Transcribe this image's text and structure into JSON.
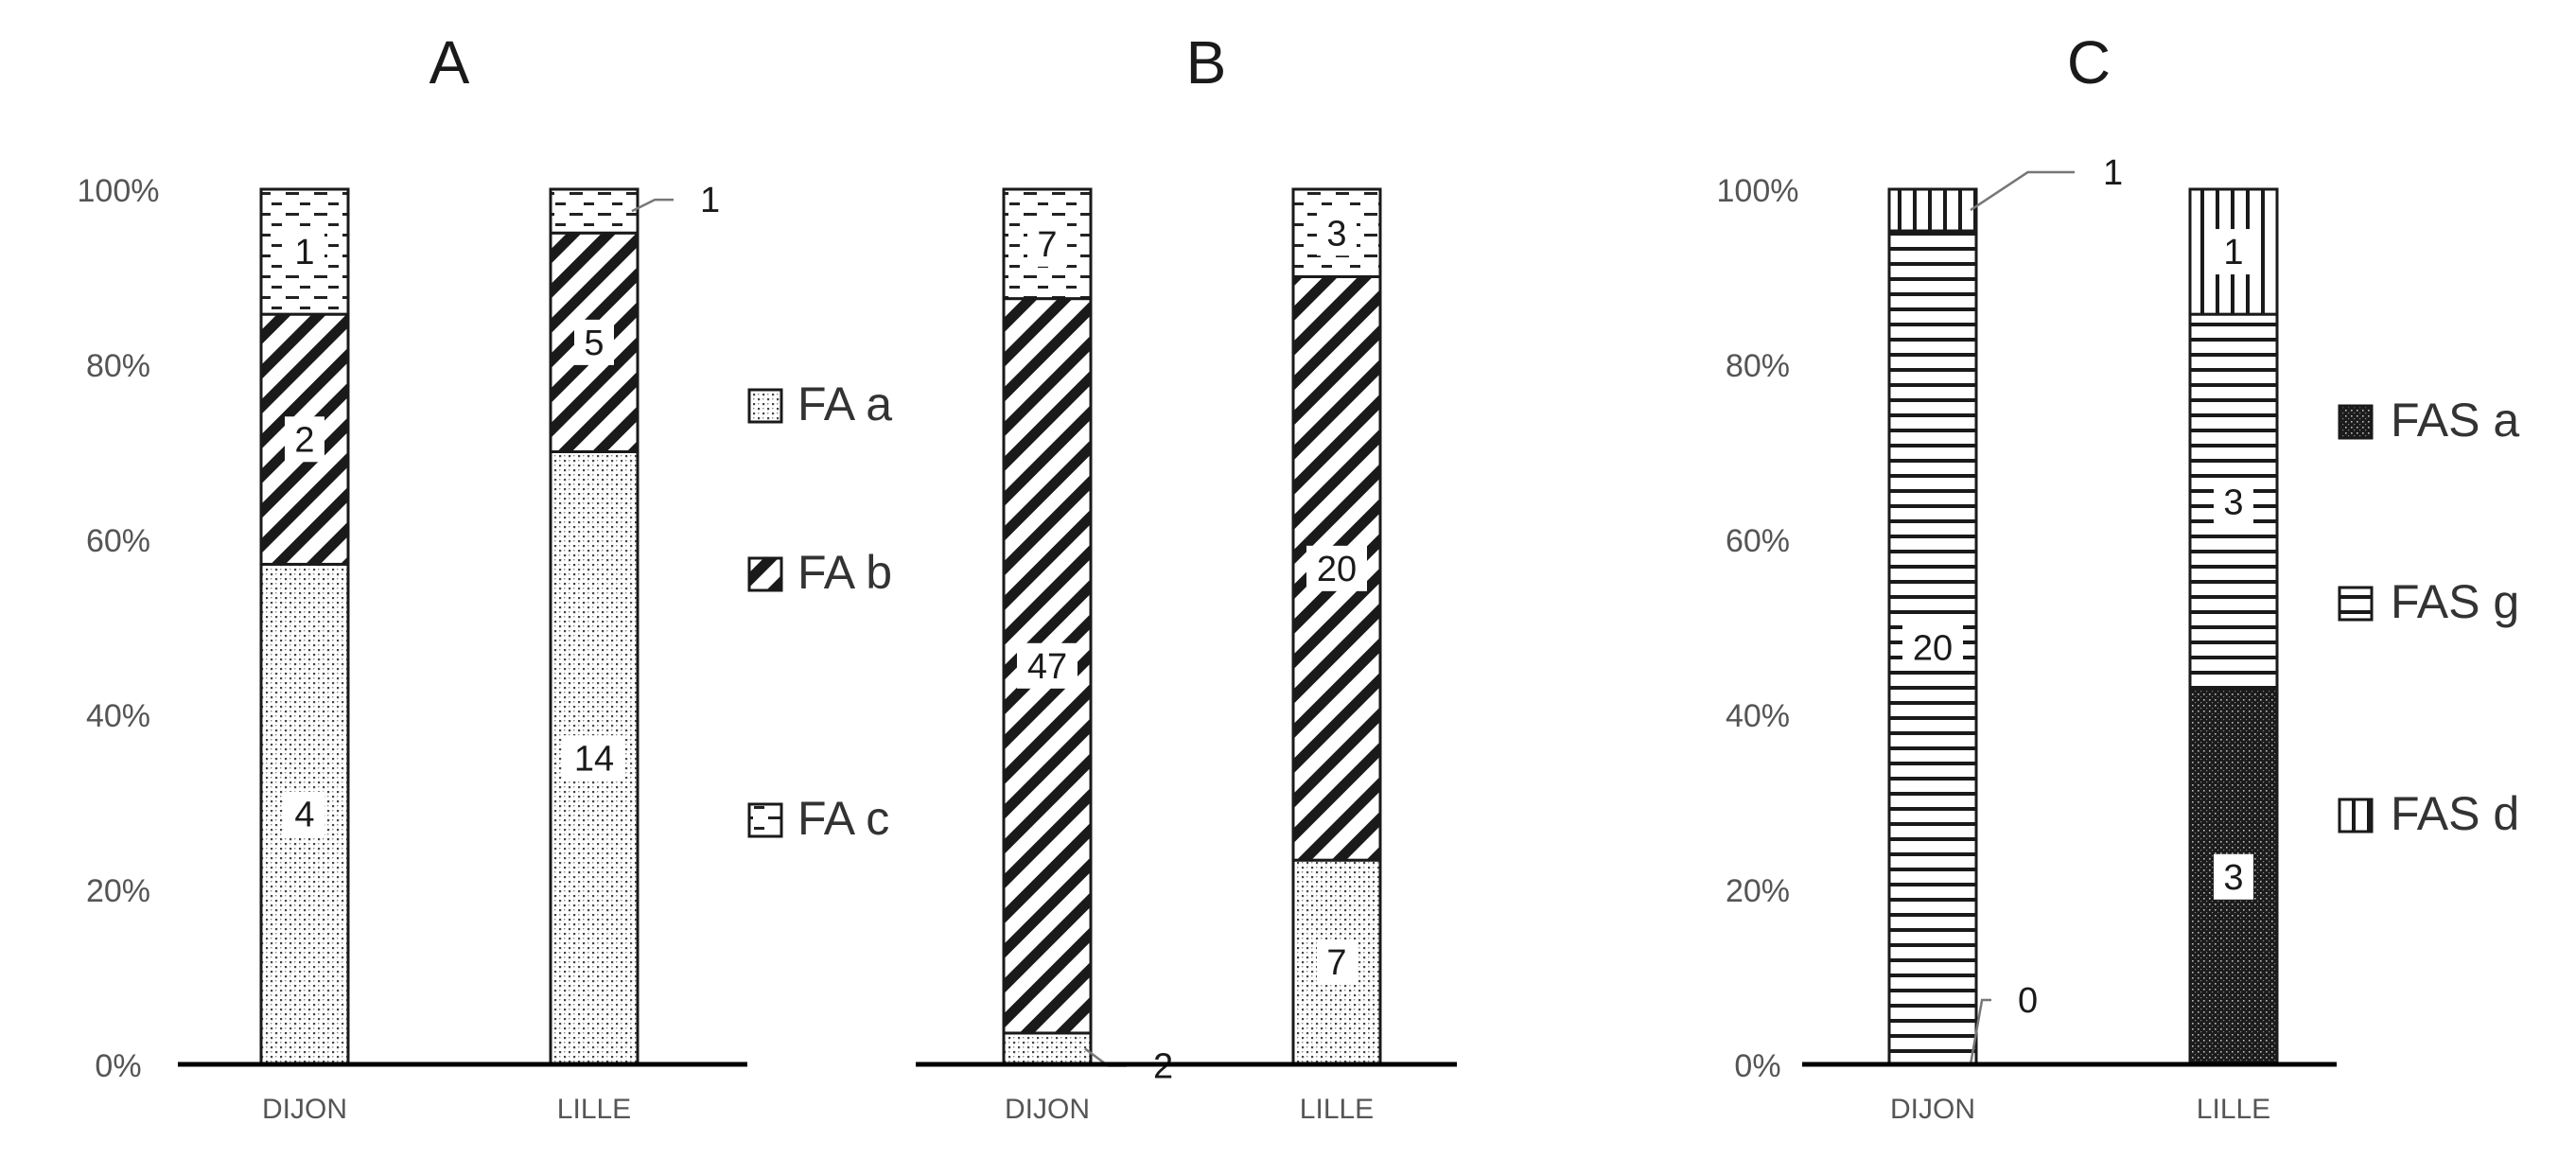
{
  "figure": {
    "panels": [
      {
        "letter": "A"
      },
      {
        "letter": "B"
      },
      {
        "letter": "C"
      }
    ]
  },
  "colors": {
    "ink": "#1a1a1a",
    "axis_text": "#555555",
    "background": "#ffffff"
  },
  "chart_data": [
    {
      "type": "bar",
      "stacked": "percent",
      "title": "A",
      "categories": [
        "DIJON",
        "LILLE"
      ],
      "yticks": [
        "0%",
        "20%",
        "40%",
        "60%",
        "80%",
        "100%"
      ],
      "ylim": [
        0,
        100
      ],
      "legend": {
        "placement": "right",
        "entries": [
          "FA a",
          "FA b",
          "FA c"
        ]
      },
      "series": [
        {
          "name": "FA a",
          "pattern": "dots",
          "values": [
            4,
            14
          ]
        },
        {
          "name": "FA b",
          "pattern": "diagonal",
          "values": [
            2,
            5
          ]
        },
        {
          "name": "FA c",
          "pattern": "dashes",
          "values": [
            1,
            1
          ]
        }
      ],
      "outside_labels": [
        {
          "series": 2,
          "category": 1,
          "text": "1"
        }
      ],
      "grid": false
    },
    {
      "type": "bar",
      "stacked": "percent",
      "title": "B",
      "categories": [
        "DIJON",
        "LILLE"
      ],
      "ylim": [
        0,
        100
      ],
      "series": [
        {
          "name": "FA a",
          "pattern": "dots",
          "values": [
            2,
            7
          ]
        },
        {
          "name": "FA b",
          "pattern": "diagonal",
          "values": [
            47,
            20
          ]
        },
        {
          "name": "FA c",
          "pattern": "dashes",
          "values": [
            7,
            3
          ]
        }
      ],
      "outside_labels": [
        {
          "series": 0,
          "category": 0,
          "text": "2"
        }
      ],
      "grid": false
    },
    {
      "type": "bar",
      "stacked": "percent",
      "title": "C",
      "categories": [
        "DIJON",
        "LILLE"
      ],
      "yticks": [
        "0%",
        "20%",
        "40%",
        "60%",
        "80%",
        "100%"
      ],
      "ylim": [
        0,
        100
      ],
      "legend": {
        "placement": "right",
        "entries": [
          "FAS a",
          "FAS g",
          "FAS d"
        ]
      },
      "series": [
        {
          "name": "FAS a",
          "pattern": "dense",
          "values": [
            0,
            3
          ]
        },
        {
          "name": "FAS g",
          "pattern": "horizontal",
          "values": [
            20,
            3
          ]
        },
        {
          "name": "FAS d",
          "pattern": "vertical",
          "values": [
            1,
            1
          ]
        }
      ],
      "outside_labels": [
        {
          "series": 2,
          "category": 0,
          "text": "1"
        },
        {
          "series": 0,
          "category": 0,
          "text": "0"
        }
      ],
      "grid": false
    }
  ]
}
